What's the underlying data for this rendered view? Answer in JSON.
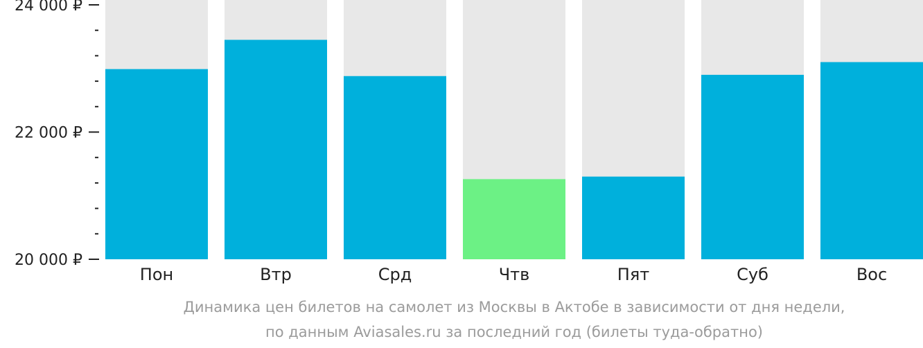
{
  "chart_data": {
    "type": "bar",
    "categories": [
      "Пон",
      "Втр",
      "Срд",
      "Чтв",
      "Пят",
      "Суб",
      "Вос"
    ],
    "values": [
      22990,
      23450,
      22880,
      21260,
      21300,
      22900,
      23100
    ],
    "ylim": [
      20000,
      24000
    ],
    "yticks": [
      {
        "value": 20000,
        "label": "20 000 ₽"
      },
      {
        "value": 22000,
        "label": "22 000 ₽"
      },
      {
        "value": 24000,
        "label": "24 000 ₽"
      }
    ],
    "minor_tick_step": 400,
    "highlight_index": 3,
    "colors": {
      "bar": "#00b0dc",
      "highlight": "#6cf185",
      "track": "#e8e8e8",
      "axis_text": "#222222"
    },
    "caption_lines": [
      "Динамика цен билетов на самолет из Москвы в Актобе в зависимости от дня недели,",
      "по данным Aviasales.ru за последний год (билеты туда-обратно)"
    ]
  }
}
